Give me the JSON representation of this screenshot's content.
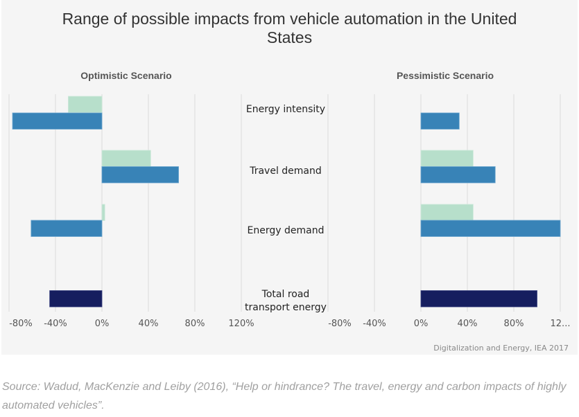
{
  "chart_data": {
    "type": "bar",
    "orientation": "horizontal",
    "title": "Range of possible impacts from vehicle automation in the United States",
    "categories": [
      "Energy intensity",
      "Travel demand",
      "Energy demand",
      "Total road transport energy"
    ],
    "category_label_lines": [
      [
        "Energy intensity"
      ],
      [
        "Travel demand"
      ],
      [
        "Energy demand"
      ],
      [
        "Total road",
        "transport energy"
      ]
    ],
    "panels": [
      {
        "name": "Optimistic Scenario",
        "xlim": [
          -80,
          120
        ],
        "ticks": [
          -80,
          -40,
          0,
          40,
          80,
          120
        ],
        "tick_labels": [
          "-80%",
          "-40%",
          "0%",
          "40%",
          "80%",
          "120%"
        ],
        "series": [
          {
            "name": "Light bar",
            "values": [
              -29,
              42,
              2.5,
              null
            ]
          },
          {
            "name": "Dark bar",
            "values": [
              -77,
              66,
              -61,
              null
            ]
          },
          {
            "name": "Total",
            "values": [
              null,
              null,
              null,
              -45
            ]
          }
        ]
      },
      {
        "name": "Pessimistic Scenario",
        "xlim": [
          -80,
          120
        ],
        "ticks": [
          -80,
          -40,
          0,
          40,
          80,
          120
        ],
        "tick_labels": [
          "-80%",
          "-40%",
          "0%",
          "40%",
          "80%",
          "12..."
        ],
        "series": [
          {
            "name": "Light bar",
            "values": [
              0,
              45,
              45,
              null
            ]
          },
          {
            "name": "Dark bar",
            "values": [
              33,
              64,
              120,
              null
            ]
          },
          {
            "name": "Total",
            "values": [
              null,
              null,
              null,
              100
            ]
          }
        ]
      }
    ],
    "colors": {
      "light": "#b7dfcb",
      "dark": "#3883b7",
      "total": "#161e5f",
      "grid": "#e3e3e3"
    },
    "grid": true,
    "xlabel": "",
    "ylabel": ""
  },
  "credit": "Digitalization and Energy, IEA 2017",
  "source": "Source: Wadud, MacKenzie and Leiby (2016), “Help or hindrance? The travel, energy and carbon impacts of highly automated vehicles”."
}
